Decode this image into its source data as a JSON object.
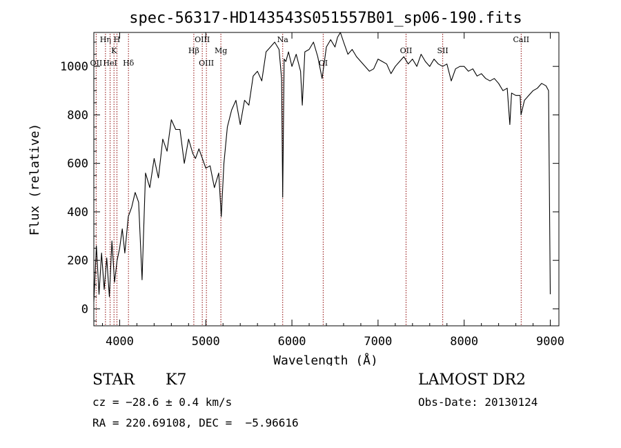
{
  "chart_data": {
    "type": "line",
    "title": "spec-56317-HD143543S051557B01_sp06-190.fits",
    "xlabel": "Wavelength (Å)",
    "ylabel": "Flux (relative)",
    "xlim": [
      3700,
      9100
    ],
    "ylim": [
      -70,
      1140
    ],
    "xticks": [
      4000,
      5000,
      6000,
      7000,
      8000,
      9000
    ],
    "yticks": [
      0,
      200,
      400,
      600,
      800,
      1000
    ],
    "grid": false,
    "line_color": "#000000",
    "marker_color": "#8b0000",
    "series": [
      {
        "x": [
          3700,
          3730,
          3760,
          3790,
          3820,
          3850,
          3880,
          3910,
          3940,
          3970,
          4000,
          4030,
          4060,
          4100,
          4140,
          4180,
          4220,
          4260,
          4300,
          4350,
          4400,
          4450,
          4500,
          4550,
          4600,
          4650,
          4700,
          4750,
          4800,
          4850,
          4880,
          4920,
          4960,
          5000,
          5050,
          5100,
          5150,
          5180,
          5210,
          5250,
          5300,
          5350,
          5400,
          5450,
          5500,
          5550,
          5600,
          5650,
          5700,
          5750,
          5800,
          5850,
          5880,
          5893,
          5900,
          5910,
          5930,
          5960,
          6000,
          6050,
          6100,
          6120,
          6150,
          6200,
          6250,
          6300,
          6350,
          6400,
          6450,
          6500,
          6530,
          6563,
          6600,
          6650,
          6700,
          6750,
          6800,
          6850,
          6900,
          6950,
          7000,
          7050,
          7100,
          7150,
          7200,
          7250,
          7300,
          7350,
          7400,
          7450,
          7500,
          7550,
          7600,
          7650,
          7700,
          7750,
          7800,
          7850,
          7900,
          7950,
          8000,
          8050,
          8100,
          8150,
          8200,
          8250,
          8300,
          8350,
          8400,
          8450,
          8500,
          8530,
          8550,
          8600,
          8650,
          8660,
          8700,
          8750,
          8800,
          8850,
          8900,
          8950,
          8980,
          9000
        ],
        "y": [
          30,
          260,
          60,
          230,
          80,
          210,
          50,
          280,
          110,
          200,
          250,
          330,
          230,
          380,
          420,
          480,
          440,
          120,
          560,
          500,
          620,
          540,
          700,
          650,
          780,
          740,
          740,
          600,
          700,
          640,
          620,
          660,
          620,
          580,
          590,
          500,
          560,
          380,
          600,
          750,
          820,
          860,
          760,
          860,
          840,
          960,
          980,
          940,
          1060,
          1080,
          1100,
          1070,
          950,
          460,
          700,
          1030,
          1020,
          1060,
          1000,
          1050,
          980,
          840,
          1060,
          1070,
          1100,
          1040,
          950,
          1080,
          1110,
          1080,
          1120,
          1140,
          1100,
          1050,
          1070,
          1040,
          1020,
          1000,
          980,
          990,
          1030,
          1020,
          1010,
          970,
          1000,
          1020,
          1040,
          1010,
          1030,
          1000,
          1050,
          1020,
          1000,
          1030,
          1010,
          1000,
          1010,
          940,
          990,
          1000,
          1000,
          980,
          990,
          960,
          970,
          950,
          940,
          950,
          930,
          900,
          910,
          760,
          890,
          880,
          880,
          800,
          860,
          880,
          900,
          910,
          930,
          920,
          900,
          60
        ]
      }
    ],
    "lines": [
      {
        "label": "OII",
        "x": 3727,
        "row": 2
      },
      {
        "label": "Hη",
        "x": 3835,
        "row": 0
      },
      {
        "label": "HeI",
        "x": 3889,
        "row": 2
      },
      {
        "label": "K",
        "x": 3934,
        "row": 1
      },
      {
        "label": "H",
        "x": 3968,
        "row": 0
      },
      {
        "label": "Hδ",
        "x": 4102,
        "row": 2
      },
      {
        "label": "Hβ",
        "x": 4861,
        "row": 1
      },
      {
        "label": "OIII",
        "x": 4959,
        "row": 0
      },
      {
        "label": "OIII",
        "x": 5007,
        "row": 2
      },
      {
        "label": "Mg",
        "x": 5175,
        "row": 1
      },
      {
        "label": "Na",
        "x": 5893,
        "row": 0
      },
      {
        "label": "OI",
        "x": 6363,
        "row": 2
      },
      {
        "label": "OII",
        "x": 7325,
        "row": 1
      },
      {
        "label": "SII",
        "x": 7751,
        "row": 1
      },
      {
        "label": "CaII",
        "x": 8662,
        "row": 0
      }
    ]
  },
  "info": {
    "class": "STAR",
    "subclass": "K7",
    "survey": "LAMOST DR2",
    "cz": "cz = −28.6 ± 0.4 km/s",
    "obs_date": "Obs-Date: 20130124",
    "coords": "RA = 220.69108, DEC =  −5.96616"
  }
}
